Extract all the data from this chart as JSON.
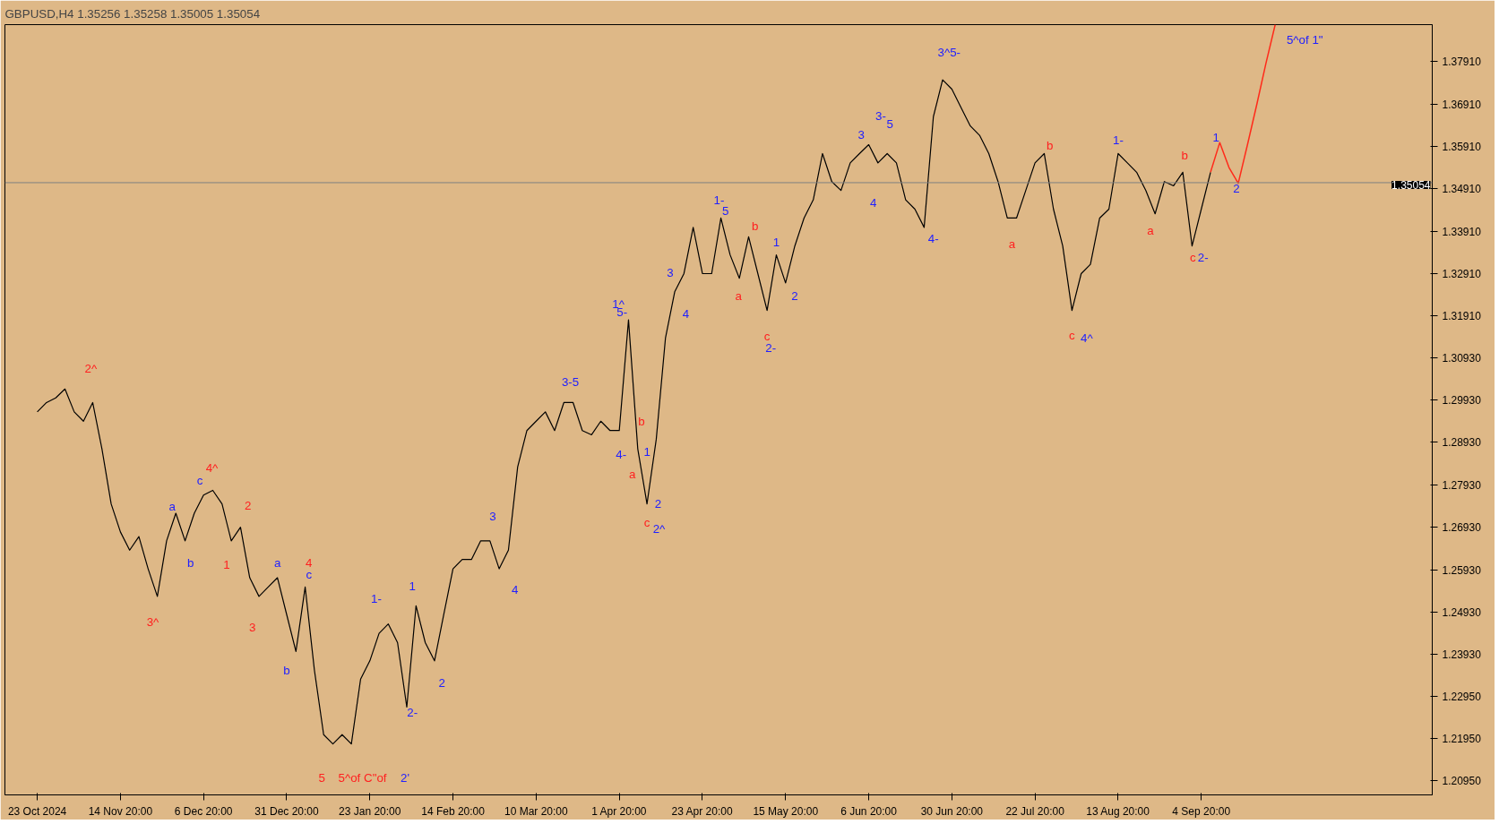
{
  "chart_data": {
    "type": "line",
    "title": "GBPUSD,H4  1.35256 1.35258 1.35005 1.35054",
    "categories": [
      "23 Oct 2024",
      null,
      null,
      null,
      null,
      null,
      null,
      null,
      null,
      "14 Nov 20:00",
      null,
      null,
      null,
      null,
      null,
      null,
      null,
      null,
      "6 Dec 20:00",
      null,
      null,
      null,
      null,
      null,
      null,
      null,
      null,
      "31 Dec 20:00",
      null,
      null,
      null,
      null,
      null,
      null,
      null,
      null,
      "23 Jan 20:00",
      null,
      null,
      null,
      null,
      null,
      null,
      null,
      null,
      "14 Feb 20:00",
      null,
      null,
      null,
      null,
      null,
      null,
      null,
      null,
      "10 Mar 20:00",
      null,
      null,
      null,
      null,
      null,
      null,
      null,
      null,
      "1 Apr 20:00",
      null,
      null,
      null,
      null,
      null,
      null,
      null,
      null,
      "23 Apr 20:00",
      null,
      null,
      null,
      null,
      null,
      null,
      null,
      null,
      "15 May 20:00",
      null,
      null,
      null,
      null,
      null,
      null,
      null,
      null,
      "6 Jun 20:00",
      null,
      null,
      null,
      null,
      null,
      null,
      null,
      null,
      "30 Jun 20:00",
      null,
      null,
      null,
      null,
      null,
      null,
      null,
      null,
      "22 Jul 20:00",
      null,
      null,
      null,
      null,
      null,
      null,
      null,
      null,
      "13 Aug 20:00",
      null,
      null,
      null,
      null,
      null,
      null,
      null,
      null,
      "4 Sep 20:00",
      null,
      null,
      null,
      null,
      null,
      null,
      null,
      null
    ],
    "series": [
      {
        "color": "#000000",
        "values": [
          1.2965,
          1.2987,
          1.2998,
          1.3019,
          1.2965,
          1.2943,
          1.2987,
          1.2878,
          1.2748,
          1.2682,
          1.2639,
          1.2671,
          1.2595,
          1.253,
          1.2661,
          1.2726,
          1.2661,
          1.2726,
          1.2769,
          1.278,
          1.2748,
          1.2661,
          1.2693,
          1.2574,
          1.253,
          1.2552,
          1.2574,
          1.2487,
          1.24,
          1.2552,
          1.2356,
          1.2204,
          1.2182,
          1.2204,
          1.2182,
          1.2335,
          1.2378,
          1.2443,
          1.2465,
          1.2421,
          1.2269,
          1.2508,
          1.2421,
          1.2378,
          1.2487,
          1.2595,
          1.2617,
          1.2617,
          1.2661,
          1.2661,
          1.2595,
          1.2639,
          1.2835,
          1.2921,
          1.2943,
          1.2965,
          1.2921,
          1.2987,
          1.2987,
          1.2921,
          1.2911,
          1.2943,
          1.2921,
          1.2921,
          1.3182,
          1.2878,
          1.2748,
          1.29,
          1.3139,
          1.3248,
          1.3291,
          1.34,
          1.3291,
          1.3291,
          1.3422,
          1.3335,
          1.328,
          1.3378,
          1.3291,
          1.3204,
          1.3335,
          1.3269,
          1.3356,
          1.3422,
          1.3465,
          1.3574,
          1.3508,
          1.3487,
          1.3552,
          1.3574,
          1.3595,
          1.3552,
          1.3574,
          1.3552,
          1.3465,
          1.3443,
          1.34,
          1.3661,
          1.3748,
          1.3726,
          1.3682,
          1.3639,
          1.3617,
          1.3574,
          1.3508,
          1.3422,
          1.3422,
          1.3487,
          1.3552,
          1.3574,
          1.3443,
          1.3356,
          1.3204,
          1.3291,
          1.3313,
          1.3422,
          1.3443,
          1.3574,
          1.3552,
          1.353,
          1.3487,
          1.3432,
          1.3508,
          1.3498,
          1.353,
          1.3356,
          1.3443,
          1.353,
          null,
          null,
          null,
          null,
          null,
          null,
          null
        ]
      },
      {
        "color": "#ff2a1a",
        "values": [
          null,
          null,
          null,
          null,
          null,
          null,
          null,
          null,
          null,
          null,
          null,
          null,
          null,
          null,
          null,
          null,
          null,
          null,
          null,
          null,
          null,
          null,
          null,
          null,
          null,
          null,
          null,
          null,
          null,
          null,
          null,
          null,
          null,
          null,
          null,
          null,
          null,
          null,
          null,
          null,
          null,
          null,
          null,
          null,
          null,
          null,
          null,
          null,
          null,
          null,
          null,
          null,
          null,
          null,
          null,
          null,
          null,
          null,
          null,
          null,
          null,
          null,
          null,
          null,
          null,
          null,
          null,
          null,
          null,
          null,
          null,
          null,
          null,
          null,
          null,
          null,
          null,
          null,
          null,
          null,
          null,
          null,
          null,
          null,
          null,
          null,
          null,
          null,
          null,
          null,
          null,
          null,
          null,
          null,
          null,
          null,
          null,
          null,
          null,
          null,
          null,
          null,
          null,
          null,
          null,
          null,
          null,
          null,
          null,
          null,
          null,
          null,
          null,
          null,
          null,
          null,
          null,
          null,
          null,
          null,
          null,
          null,
          null,
          null,
          null,
          null,
          null,
          1.353,
          1.36,
          1.3541,
          1.3504,
          1.3595,
          1.3689,
          1.3787,
          1.3878
        ]
      }
    ],
    "ylim": [
      1.2062,
      1.3878
    ],
    "yticks": [
      {
        "value": 1.2095,
        "label": "1.20950"
      },
      {
        "value": 1.2195,
        "label": "1.21950"
      },
      {
        "value": 1.2295,
        "label": "1.22950"
      },
      {
        "value": 1.2393,
        "label": "1.23930"
      },
      {
        "value": 1.2493,
        "label": "1.24930"
      },
      {
        "value": 1.2593,
        "label": "1.25930"
      },
      {
        "value": 1.2693,
        "label": "1.26930"
      },
      {
        "value": 1.2793,
        "label": "1.27930"
      },
      {
        "value": 1.2893,
        "label": "1.28930"
      },
      {
        "value": 1.2993,
        "label": "1.29930"
      },
      {
        "value": 1.3093,
        "label": "1.30930"
      },
      {
        "value": 1.3191,
        "label": "1.31910"
      },
      {
        "value": 1.3291,
        "label": "1.32910"
      },
      {
        "value": 1.3391,
        "label": "1.33910"
      },
      {
        "value": 1.3491,
        "label": "1.34910"
      },
      {
        "value": 1.3591,
        "label": "1.35910"
      },
      {
        "value": 1.3691,
        "label": "1.36910"
      },
      {
        "value": 1.3791,
        "label": "1.37910"
      }
    ],
    "ref_lines": [
      {
        "axis": "y",
        "value": 1.35054,
        "label": "1.35054",
        "color": "#808080"
      }
    ],
    "grid": false,
    "annotations": [
      "2^",
      "4^",
      "c",
      "a",
      "b",
      "3^",
      "2",
      "1",
      "3",
      "a",
      "4",
      "c",
      "b",
      "5",
      "5^of C\"of",
      "2'",
      "1-",
      "1",
      "2-",
      "2",
      "3",
      "4",
      "3-5",
      "4-",
      "1^",
      "5-",
      "b",
      "a",
      "1",
      "2",
      "c",
      "2^",
      "3",
      "4",
      "1-",
      "5",
      "b",
      "a",
      "1",
      "2",
      "c",
      "2-",
      "3",
      "4",
      "3-",
      "5",
      "3^5-",
      "4-",
      "b",
      "a",
      "c",
      "4^",
      "1-",
      "a",
      "b",
      "c",
      "2-",
      "1",
      "2",
      "5^of 1\""
    ]
  }
}
